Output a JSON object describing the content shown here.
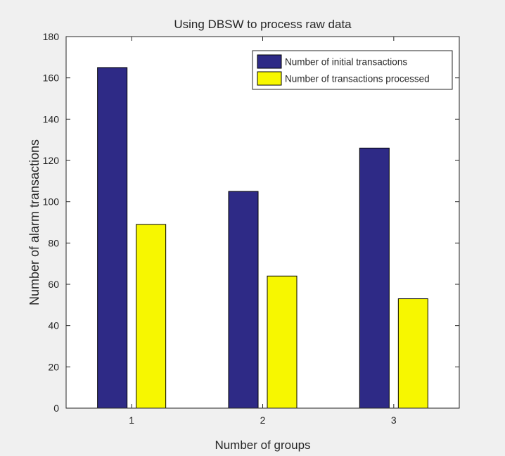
{
  "colors": {
    "figure_bg": "#f0f0f0",
    "axes_bg": "#ffffff",
    "series_1": "#2e2a86",
    "series_2": "#f7f700"
  },
  "chart_data": {
    "type": "bar",
    "title": "Using DBSW to process raw data",
    "xlabel": "Number of groups",
    "ylabel": "Number of alarm transactions",
    "categories": [
      "1",
      "2",
      "3"
    ],
    "ylim": [
      0,
      180
    ],
    "yticks": [
      "0",
      "20",
      "40",
      "60",
      "80",
      "100",
      "120",
      "140",
      "160",
      "180"
    ],
    "grid": false,
    "legend_position": "top-right",
    "series": [
      {
        "name": "Number of initial transactions",
        "values": [
          165,
          105,
          126
        ]
      },
      {
        "name": "Number of transactions processed",
        "values": [
          89,
          64,
          53
        ]
      }
    ]
  }
}
